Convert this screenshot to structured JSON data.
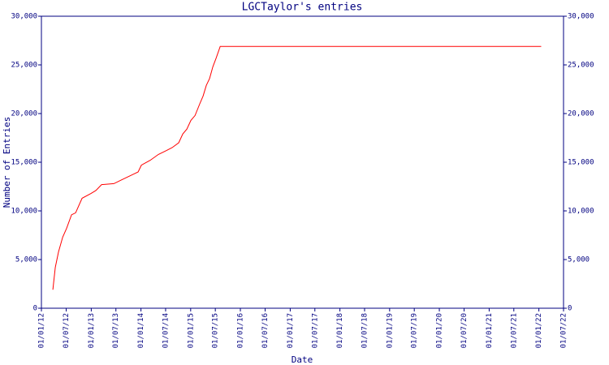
{
  "chart_data": {
    "type": "line",
    "title": "LGCTaylor's entries",
    "x_label": "Date",
    "y_label": "Number of Entries",
    "x": [
      "2012-03-25",
      "2012-04-12",
      "2012-05-06",
      "2012-06-05",
      "2012-07-04",
      "2012-08-09",
      "2012-09-08",
      "2012-10-26",
      "2012-12-31",
      "2013-02-04",
      "2013-03-18",
      "2013-06-16",
      "2013-08-14",
      "2013-11-11",
      "2013-12-11",
      "2014-01-04",
      "2014-03-10",
      "2014-05-09",
      "2014-07-07",
      "2014-08-18",
      "2014-10-05",
      "2014-11-04",
      "2014-12-04",
      "2015-01-03",
      "2015-02-02",
      "2015-03-09",
      "2015-04-02",
      "2015-04-26",
      "2015-05-20",
      "2015-06-13",
      "2015-07-07",
      "2015-08-06",
      "2022-01-18"
    ],
    "series": [
      {
        "name": "Entries",
        "color": "#ff0000",
        "values": [
          1900,
          4200,
          5800,
          7300,
          8200,
          9600,
          9800,
          11300,
          11800,
          12100,
          12700,
          12800,
          13200,
          13800,
          14000,
          14700,
          15200,
          15800,
          16200,
          16500,
          17000,
          17900,
          18400,
          19300,
          19800,
          21000,
          21800,
          22900,
          23600,
          24800,
          25700,
          26900,
          26900
        ]
      }
    ],
    "xlim": [
      "2012-01-01",
      "2022-07-01"
    ],
    "xticks": [
      {
        "value": "2012-01-01",
        "label": "01/01/12"
      },
      {
        "value": "2012-07-01",
        "label": "01/07/12"
      },
      {
        "value": "2013-01-01",
        "label": "01/01/13"
      },
      {
        "value": "2013-07-01",
        "label": "01/07/13"
      },
      {
        "value": "2014-01-01",
        "label": "01/01/14"
      },
      {
        "value": "2014-07-01",
        "label": "01/07/14"
      },
      {
        "value": "2015-01-01",
        "label": "01/01/15"
      },
      {
        "value": "2015-07-01",
        "label": "01/07/15"
      },
      {
        "value": "2016-01-01",
        "label": "01/01/16"
      },
      {
        "value": "2016-07-01",
        "label": "01/07/16"
      },
      {
        "value": "2017-01-01",
        "label": "01/01/17"
      },
      {
        "value": "2017-07-01",
        "label": "01/07/17"
      },
      {
        "value": "2018-01-01",
        "label": "01/01/18"
      },
      {
        "value": "2018-07-01",
        "label": "01/07/18"
      },
      {
        "value": "2019-01-01",
        "label": "01/01/19"
      },
      {
        "value": "2019-07-01",
        "label": "01/07/19"
      },
      {
        "value": "2020-01-01",
        "label": "01/01/20"
      },
      {
        "value": "2020-07-01",
        "label": "01/07/20"
      },
      {
        "value": "2021-01-01",
        "label": "01/01/21"
      },
      {
        "value": "2021-07-01",
        "label": "01/07/21"
      },
      {
        "value": "2022-01-01",
        "label": "01/01/22"
      },
      {
        "value": "2022-07-01",
        "label": "01/07/22"
      }
    ],
    "ylim": [
      0,
      30000
    ],
    "yticks": [
      0,
      {
        "value": 5000,
        "label": "5,000"
      },
      {
        "value": 10000,
        "label": "10,000"
      },
      {
        "value": 15000,
        "label": "15,000"
      },
      {
        "value": 20000,
        "label": "20,000"
      },
      {
        "value": 25000,
        "label": "25,000"
      },
      {
        "value": 30000,
        "label": "30,000"
      }
    ],
    "axis_color": "#000080"
  }
}
